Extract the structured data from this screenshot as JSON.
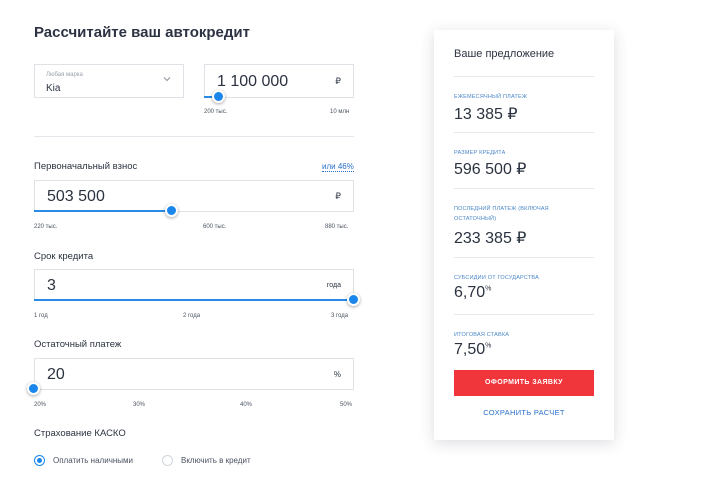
{
  "title": "Рассчитайте ваш автокредит",
  "brand": {
    "label": "Любая марка",
    "value": "Kia"
  },
  "price": {
    "value": "1 100 000",
    "unit": "₽",
    "min_label": "200 тыс.",
    "max_label": "10 млн"
  },
  "down_payment": {
    "label": "Первоначальный взнос",
    "percent_link": "или 46%",
    "value": "503 500",
    "unit": "₽",
    "ticks": [
      "220 тыс.",
      "600 тыс.",
      "880 тыс."
    ]
  },
  "term": {
    "label": "Срок кредита",
    "value": "3",
    "unit": "года",
    "ticks": [
      "1 год",
      "2 года",
      "3 года"
    ]
  },
  "residual": {
    "label": "Остаточный платеж",
    "value": "20",
    "unit": "%",
    "ticks": [
      "20%",
      "30%",
      "40%",
      "50%"
    ]
  },
  "insurance": {
    "label": "Страхование КАСКО",
    "options": [
      "Оплатить наличными",
      "Включить в кредит"
    ],
    "selected": 0
  },
  "offer": {
    "title": "Ваше предложение",
    "monthly_caption": "Ежемесячный платеж",
    "monthly_value": "13 385 ₽",
    "amount_caption": "Размер кредита",
    "amount_value": "596 500 ₽",
    "last_caption": "Последний платеж (включая остаточный)",
    "last_value": "233 385 ₽",
    "subsidy_caption": "Субсидии от государства",
    "subsidy_value": "6,70",
    "rate_caption": "Итоговая ставка",
    "rate_value": "7,50",
    "percent_sign": "%",
    "order_button": "ОФОРМИТЬ ЗАЯВКУ",
    "save_button": "СОХРАНИТЬ РАСЧЕТ"
  },
  "colors": {
    "accent": "#1a86ec",
    "button": "#f0353b",
    "link": "#2a6fc9"
  }
}
